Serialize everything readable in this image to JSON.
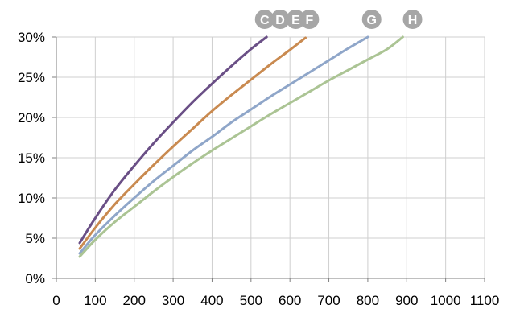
{
  "chart_data": {
    "type": "line",
    "title": "",
    "xlabel": "",
    "ylabel": "",
    "xlim": [
      0,
      1100
    ],
    "ylim": [
      0,
      30
    ],
    "x_ticks": [
      0,
      100,
      200,
      300,
      400,
      500,
      600,
      700,
      800,
      900,
      1000,
      1100
    ],
    "x_tick_labels": [
      "0",
      "100",
      "200",
      "300",
      "400",
      "500",
      "600",
      "700",
      "800",
      "900",
      "1000",
      "1100"
    ],
    "y_ticks": [
      0,
      5,
      10,
      15,
      20,
      25,
      30
    ],
    "y_tick_labels": [
      "0%",
      "5%",
      "10%",
      "15%",
      "20%",
      "25%",
      "30%"
    ],
    "grid": true,
    "legend": "badges along top edge at the end of each line",
    "series": [
      {
        "name": "C",
        "color": "#6a4f86",
        "x": [
          60,
          100,
          150,
          200,
          250,
          300,
          350,
          400,
          450,
          500,
          540
        ],
        "y": [
          4.4,
          7.5,
          11.0,
          14.0,
          16.8,
          19.4,
          21.9,
          24.2,
          26.4,
          28.5,
          30.0
        ]
      },
      {
        "name": "D",
        "color": "#c98a50",
        "x": [
          60,
          100,
          150,
          200,
          250,
          300,
          350,
          400,
          450,
          500,
          550,
          600,
          640
        ],
        "y": [
          3.7,
          6.3,
          9.2,
          11.7,
          14.1,
          16.4,
          18.6,
          20.8,
          22.8,
          24.7,
          26.6,
          28.4,
          29.9
        ]
      },
      {
        "name": "E",
        "color": "",
        "x": [],
        "y": []
      },
      {
        "name": "F",
        "color": "",
        "x": [],
        "y": []
      },
      {
        "name": "G",
        "color": "#8fa6c9",
        "x": [
          60,
          100,
          150,
          200,
          250,
          300,
          350,
          400,
          450,
          500,
          550,
          600,
          650,
          700,
          750,
          800
        ],
        "y": [
          3.1,
          5.4,
          7.8,
          10.0,
          12.1,
          14.0,
          15.9,
          17.6,
          19.4,
          21.0,
          22.6,
          24.1,
          25.6,
          27.1,
          28.6,
          30.0
        ]
      },
      {
        "name": "H",
        "color": "#abc494",
        "x": [
          60,
          100,
          150,
          200,
          250,
          300,
          350,
          400,
          450,
          500,
          550,
          600,
          650,
          700,
          750,
          800,
          850,
          890
        ],
        "y": [
          2.7,
          4.8,
          7.0,
          8.9,
          10.8,
          12.6,
          14.3,
          15.9,
          17.4,
          18.9,
          20.4,
          21.8,
          23.2,
          24.6,
          25.9,
          27.2,
          28.5,
          30.0
        ]
      }
    ],
    "badges": [
      {
        "label": "C",
        "x_value": 535
      },
      {
        "label": "D",
        "x_value": 575
      },
      {
        "label": "E",
        "x_value": 615
      },
      {
        "label": "F",
        "x_value": 650
      },
      {
        "label": "G",
        "x_value": 810
      },
      {
        "label": "H",
        "x_value": 915
      }
    ],
    "colors": {
      "grid": "#cfcfcf",
      "axis": "#7f7f7f",
      "badge_fill": "#a6a6a6"
    }
  }
}
